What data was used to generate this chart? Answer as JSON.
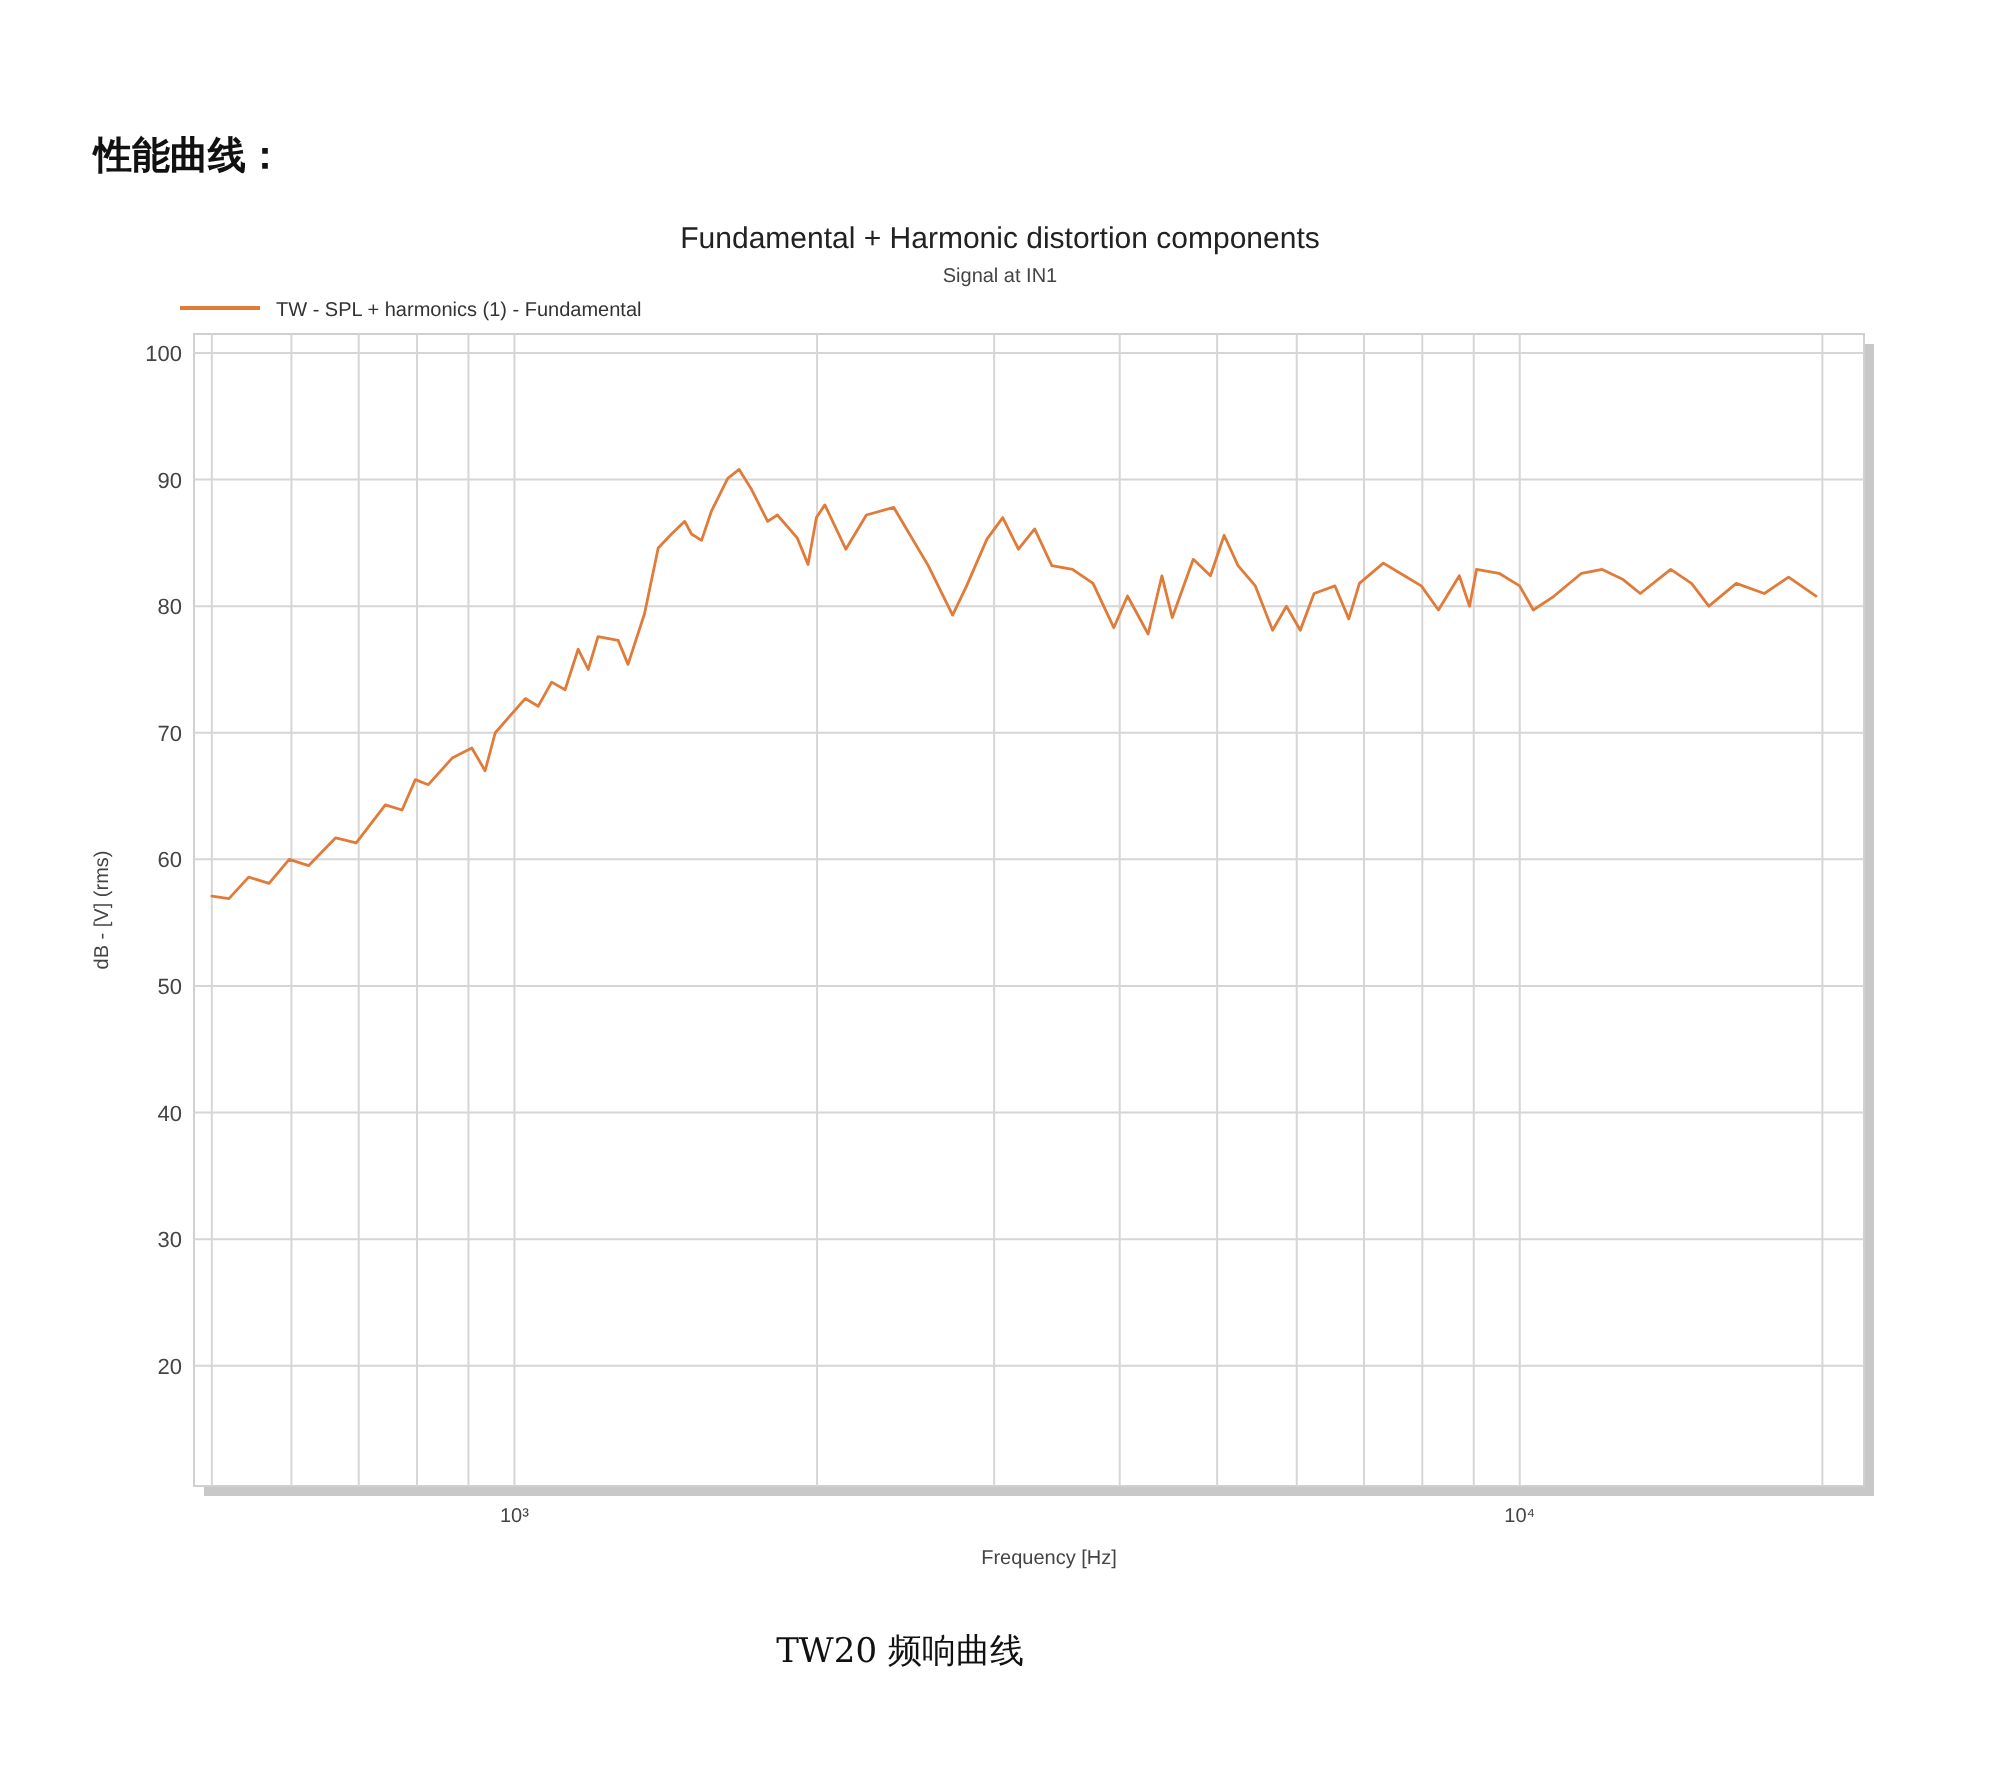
{
  "chart_data": {
    "type": "line",
    "title": "Fundamental + Harmonic distortion components",
    "subtitle": "Signal at IN1",
    "xlabel": "Frequency [Hz]",
    "ylabel": "dB - [V] (rms)",
    "annotations": [
      "性能曲线：",
      "TW20 频响曲线"
    ],
    "log": "x",
    "grid": true,
    "legend": "top left",
    "marker": "none",
    "line_style": "solid",
    "xlim": [
      480,
      22000
    ],
    "ylim": [
      10.5,
      101.5
    ],
    "xticks": [
      {
        "value": 500,
        "label": null
      },
      {
        "value": 600,
        "label": null
      },
      {
        "value": 700,
        "label": null
      },
      {
        "value": 800,
        "label": null
      },
      {
        "value": 900,
        "label": null
      },
      {
        "value": 1000,
        "label": "10³"
      },
      {
        "value": 2000,
        "label": null
      },
      {
        "value": 3000,
        "label": null
      },
      {
        "value": 4000,
        "label": null
      },
      {
        "value": 5000,
        "label": null
      },
      {
        "value": 6000,
        "label": null
      },
      {
        "value": 7000,
        "label": null
      },
      {
        "value": 8000,
        "label": null
      },
      {
        "value": 9000,
        "label": null
      },
      {
        "value": 10000,
        "label": "10⁴"
      },
      {
        "value": 20000,
        "label": null
      }
    ],
    "yticks": [
      20,
      30,
      40,
      50,
      60,
      70,
      80,
      90,
      100
    ],
    "series": [
      {
        "name": "TW - SPL + harmonics (1) - Fundamental",
        "color": "#e07b39",
        "x": [
          500,
          520,
          544,
          570,
          597,
          624,
          664,
          696,
          744,
          773,
          797,
          821,
          867,
          907,
          935,
          957,
          1025,
          1056,
          1089,
          1123,
          1157,
          1184,
          1211,
          1268,
          1297,
          1347,
          1390,
          1433,
          1477,
          1500,
          1535,
          1570,
          1630,
          1673,
          1719,
          1786,
          1826,
          1911,
          1959,
          1997,
          2036,
          2136,
          2239,
          2384,
          2463,
          2580,
          2728,
          2817,
          2951,
          3060,
          3172,
          3292,
          3424,
          3590,
          3763,
          3946,
          4072,
          4269,
          4406,
          4512,
          4734,
          4924,
          5081,
          5245,
          5457,
          5677,
          5860,
          6049,
          6243,
          6549,
          6760,
          6926,
          7316,
          7678,
          7981,
          8301,
          8707,
          8914,
          9057,
          9536,
          9997,
          10315,
          10820,
          11520,
          12080,
          12670,
          13180,
          14130,
          14820,
          15420,
          16420,
          17510,
          18510,
          19710
        ],
        "values": [
          57.1,
          56.9,
          58.6,
          58.1,
          60.0,
          59.5,
          61.7,
          61.3,
          64.3,
          63.9,
          66.3,
          65.9,
          68.0,
          68.8,
          67.0,
          70.0,
          72.7,
          72.1,
          74.0,
          73.4,
          76.6,
          75.0,
          77.6,
          77.3,
          75.4,
          79.4,
          84.6,
          85.7,
          86.7,
          85.7,
          85.2,
          87.5,
          90.1,
          90.8,
          89.3,
          86.7,
          87.2,
          85.4,
          83.3,
          87.0,
          88.0,
          84.5,
          87.2,
          87.8,
          85.9,
          83.2,
          79.3,
          81.6,
          85.3,
          87.0,
          84.5,
          86.1,
          83.2,
          82.9,
          81.8,
          78.3,
          80.8,
          77.8,
          82.4,
          79.1,
          83.7,
          82.4,
          85.6,
          83.2,
          81.6,
          78.1,
          80.0,
          78.1,
          81.0,
          81.6,
          79.0,
          81.8,
          83.4,
          82.4,
          81.6,
          79.7,
          82.4,
          80.0,
          82.9,
          82.6,
          81.6,
          79.7,
          80.8,
          82.6,
          82.9,
          82.1,
          81.0,
          82.9,
          81.8,
          80.0,
          81.8,
          81.0,
          82.3,
          80.8
        ]
      }
    ]
  }
}
